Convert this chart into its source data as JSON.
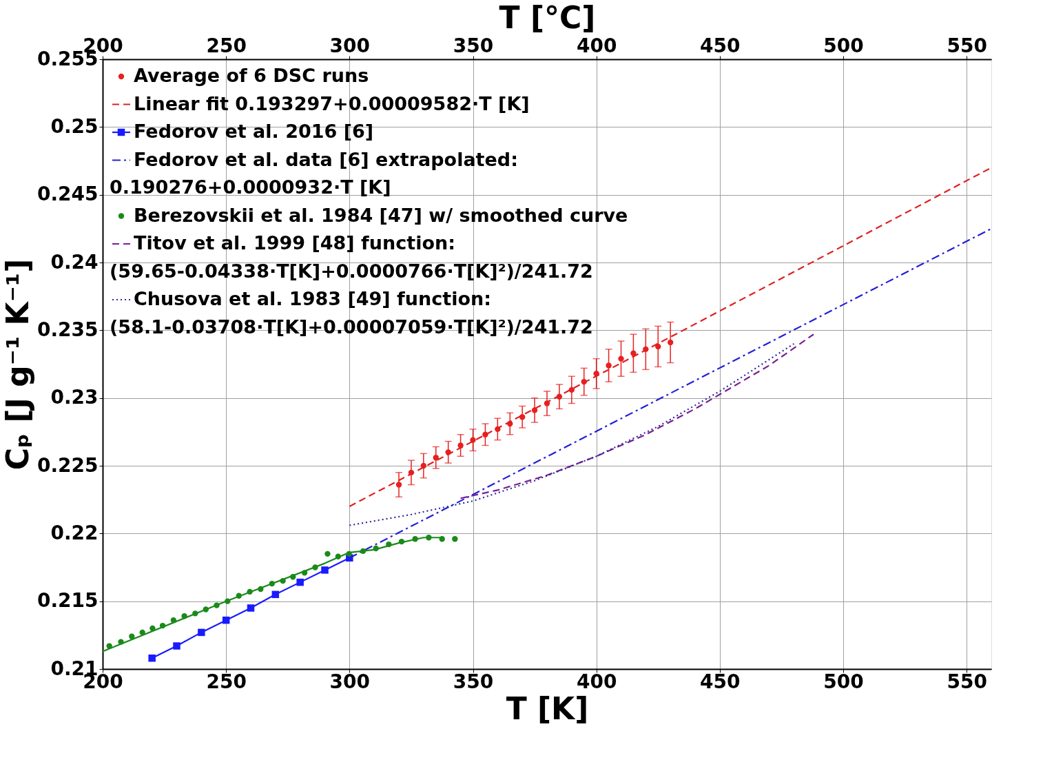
{
  "chart_data": {
    "type": "scatter",
    "xlabel": "T [K]",
    "ylabel": "Cₚ [J g⁻¹ K⁻¹]",
    "x2label": "T [°C]",
    "xlim": [
      200,
      560
    ],
    "xticks": [
      200,
      250,
      300,
      350,
      400,
      450,
      500,
      550
    ],
    "x2lim": [
      200,
      560
    ],
    "x2ticks": [
      200,
      250,
      300,
      350,
      400,
      450,
      500,
      550
    ],
    "ylim": [
      0.21,
      0.255
    ],
    "yticks": [
      {
        "value": 0.21,
        "label": "0.21"
      },
      0.215,
      {
        "value": 0.22,
        "label": "0.22"
      },
      0.225,
      {
        "value": 0.23,
        "label": "0.23"
      },
      0.235,
      {
        "value": 0.24,
        "label": "0.24"
      },
      0.245,
      {
        "value": 0.25,
        "label": "0.25"
      },
      0.255
    ],
    "grid": true,
    "legend": "top left",
    "series": [
      {
        "name": "Average of 6 DSC runs",
        "marker": "circle",
        "color": "#e82020",
        "x": [
          320,
          325,
          330,
          335,
          340,
          345,
          350,
          355,
          360,
          365,
          370,
          375,
          380,
          385,
          390,
          395,
          400,
          405,
          410,
          415,
          420,
          425,
          430
        ],
        "values": [
          0.2236,
          0.2245,
          0.225,
          0.2256,
          0.226,
          0.2265,
          0.2269,
          0.2273,
          0.2277,
          0.2281,
          0.2286,
          0.2291,
          0.2296,
          0.2301,
          0.2306,
          0.2312,
          0.2318,
          0.2324,
          0.2329,
          0.2333,
          0.2336,
          0.2338,
          0.2341
        ],
        "errors": [
          0.0009,
          0.0009,
          0.0009,
          0.0008,
          0.0008,
          0.0008,
          0.0008,
          0.0008,
          0.0008,
          0.0008,
          0.0008,
          0.0009,
          0.0009,
          0.0009,
          0.001,
          0.001,
          0.0011,
          0.0012,
          0.0013,
          0.0014,
          0.0015,
          0.0015,
          0.0015
        ]
      },
      {
        "name": "Linear fit 0.193297+0.00009582·T [K]",
        "type": "line",
        "line_style": "dashed",
        "marker": "none",
        "color": "#e02020",
        "x": [
          300,
          560
        ],
        "values": [
          0.222,
          0.247
        ]
      },
      {
        "name": "Fedorov et al. 2016 [6]",
        "type": "line",
        "line_style": "solid",
        "marker": "square",
        "color": "#1a1aff",
        "x": [
          220,
          230,
          240,
          250,
          260,
          270,
          280,
          290,
          300
        ],
        "values": [
          0.2108,
          0.2117,
          0.2127,
          0.2136,
          0.2145,
          0.2155,
          0.2164,
          0.2173,
          0.2182
        ]
      },
      {
        "name": "Fedorov et al. data [6] extrapolated:\n0.190276+0.0000932·T [K]",
        "type": "line",
        "line_style": "dashdot",
        "marker": "none",
        "color": "#2020d8",
        "x": [
          300,
          560
        ],
        "values": [
          0.2182,
          0.2425
        ]
      },
      {
        "name": "Berezovskii et al. 1984 [47] w/ smoothed curve",
        "marker": "circle",
        "color": "#1a8a1a",
        "x": [
          202.7,
          207.4,
          211.8,
          216.1,
          220.2,
          224.3,
          228.7,
          233.1,
          237.5,
          241.8,
          246.2,
          250.6,
          255.2,
          259.6,
          264.0,
          268.6,
          273.0,
          277.1,
          281.8,
          286.1,
          291.1,
          295.4,
          299.8,
          305.5,
          310.7,
          315.9,
          321.1,
          326.6,
          332.1,
          337.5,
          342.7
        ],
        "values": [
          0.2117,
          0.212,
          0.2124,
          0.2127,
          0.213,
          0.2132,
          0.2136,
          0.2139,
          0.2141,
          0.2144,
          0.2147,
          0.215,
          0.2154,
          0.2157,
          0.2159,
          0.2163,
          0.2165,
          0.2168,
          0.2171,
          0.2175,
          0.2185,
          0.2183,
          0.2185,
          0.2187,
          0.2189,
          0.2192,
          0.2194,
          0.2196,
          0.2197,
          0.2196,
          0.2196
        ]
      },
      {
        "type": "line",
        "line_style": "solid",
        "marker": "none",
        "color": "#1a8a1a",
        "x": [
          200,
          250,
          290,
          300,
          310,
          320,
          330,
          337
        ],
        "values": [
          0.2113,
          0.215,
          0.2178,
          0.2186,
          0.2188,
          0.2193,
          0.2197,
          0.2197
        ]
      },
      {
        "name": "Titov et al.  1999 [48] function:\n(59.65-0.04338·T[K]+0.0000766·T[K]²)/241.72",
        "type": "line",
        "line_style": "dashed",
        "marker": "none",
        "color": "#7a1f8f",
        "x": [
          345,
          360,
          380,
          400,
          420,
          440,
          470,
          488
        ],
        "values": [
          0.2226,
          0.2232,
          0.2243,
          0.2257,
          0.2273,
          0.2292,
          0.2324,
          0.2347
        ]
      },
      {
        "name": "Chusova et al. 1983 [49] function:\n(58.1-0.03708·T[K]+0.00007059·T[K]²)/241.72",
        "type": "line",
        "line_style": "dotted",
        "marker": "none",
        "color": "#2a2a9a",
        "x": [
          300,
          325,
          350,
          375,
          400,
          425,
          450,
          480
        ],
        "values": [
          0.2206,
          0.2214,
          0.2224,
          0.2239,
          0.2257,
          0.2279,
          0.2305,
          0.234
        ]
      }
    ]
  }
}
